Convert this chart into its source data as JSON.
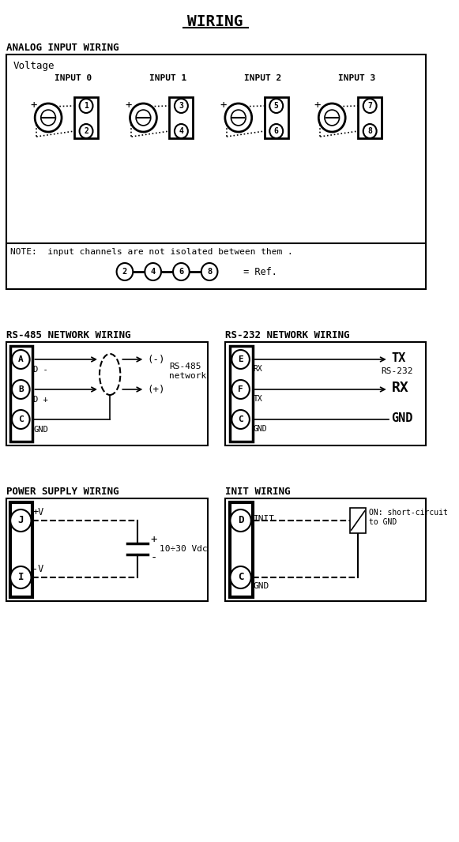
{
  "title": "WIRING",
  "bg_color": "#ffffff",
  "fg_color": "#000000",
  "analog_section": {
    "header": "ANALOG INPUT WIRING",
    "sub_label": "Voltage",
    "inputs": [
      "INPUT 0",
      "INPUT 1",
      "INPUT 2",
      "INPUT 3"
    ],
    "pin_pairs": [
      [
        "1",
        "2"
      ],
      [
        "3",
        "4"
      ],
      [
        "5",
        "6"
      ],
      [
        "7",
        "8"
      ]
    ],
    "note": "NOTE:  input channels are not isolated between them .",
    "ref_pins": [
      "2",
      "4",
      "6",
      "8"
    ],
    "ref_label": "= Ref."
  },
  "rs485_section": {
    "header": "RS-485 NETWORK WIRING",
    "pins": [
      "A",
      "B",
      "C"
    ],
    "labels": [
      "D -",
      "D +",
      "GND"
    ],
    "net_label": "RS-485\nnetwork",
    "minus_label": "(-)",
    "plus_label": "(+)"
  },
  "rs232_section": {
    "header": "RS-232 NETWORK WIRING",
    "pins": [
      "E",
      "F",
      "C"
    ],
    "labels": [
      "RX",
      "TX",
      "GND"
    ],
    "tx_label": "TX",
    "rx_label": "RX",
    "gnd_label": "GND",
    "net_label": "RS-232"
  },
  "power_section": {
    "header": "POWER SUPPLY WIRING",
    "pins": [
      "J",
      "I"
    ],
    "labels": [
      "+V",
      "-V"
    ],
    "volt_label": "10÷30 Vdc"
  },
  "init_section": {
    "header": "INIT WIRING",
    "pins": [
      "D",
      "C"
    ],
    "labels": [
      "INIT",
      "GND"
    ],
    "note": "ON: short-circuit\nto GND"
  }
}
